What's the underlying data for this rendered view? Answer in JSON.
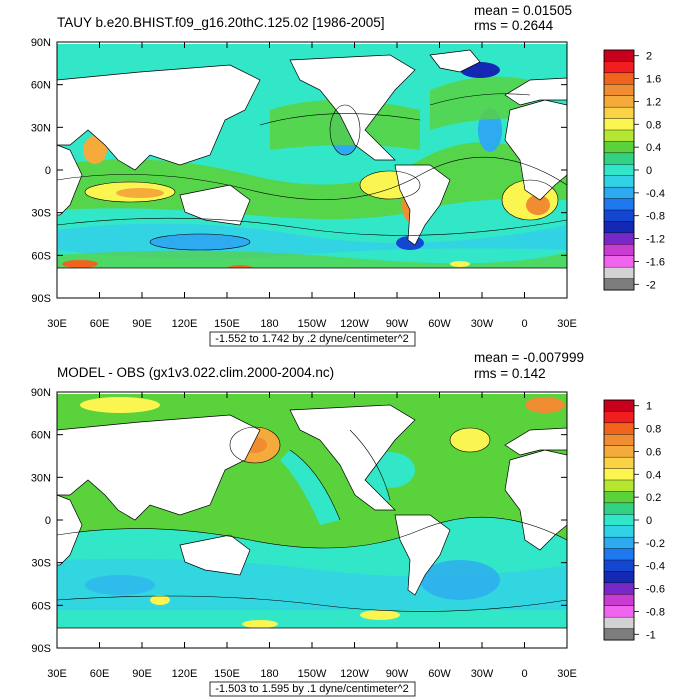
{
  "panels": [
    {
      "title": "TAUY b.e20.BHIST.f09_g16.20thC.125.02 [1986-2005]",
      "mean": "mean = 0.01505",
      "rms": "rms = 0.2644",
      "range_label": "-1.552 to 1.742 by .2 dyne/centimeter^2",
      "lat_labels": [
        "90N",
        "60N",
        "30N",
        "0",
        "30S",
        "60S",
        "90S"
      ],
      "lon_labels": [
        "30E",
        "60E",
        "90E",
        "120E",
        "150E",
        "180",
        "150W",
        "120W",
        "90W",
        "60W",
        "30W",
        "0",
        "30E"
      ],
      "colorbar_labels": [
        "2",
        "1.6",
        "1.2",
        "0.8",
        "0.4",
        "0",
        "-0.4",
        "-0.8",
        "-1.2",
        "-1.6",
        "-2"
      ],
      "colorbar_colors": [
        "#c8001e",
        "#f01e1e",
        "#f0641e",
        "#f08c32",
        "#f5aa3c",
        "#fad246",
        "#faf550",
        "#b4e632",
        "#5ad23c",
        "#32d282",
        "#32e6c8",
        "#32d2e6",
        "#2daaf0",
        "#1e78f0",
        "#1446d2",
        "#1428b4",
        "#7828c8",
        "#c83cd2",
        "#f064f0",
        "#d2d2d2",
        "#7d7d7d"
      ]
    },
    {
      "title": "MODEL - OBS (gx1v3.022.clim.2000-2004.nc)",
      "mean": "mean = -0.007999",
      "rms": "rms = 0.142",
      "range_label": "-1.503 to 1.595 by .1 dyne/centimeter^2",
      "lat_labels": [
        "90N",
        "60N",
        "30N",
        "0",
        "30S",
        "60S",
        "90S"
      ],
      "lon_labels": [
        "30E",
        "60E",
        "90E",
        "120E",
        "150E",
        "180",
        "150W",
        "120W",
        "90W",
        "60W",
        "30W",
        "0",
        "30E"
      ],
      "colorbar_labels": [
        "1",
        "0.8",
        "0.6",
        "0.4",
        "0.2",
        "0",
        "-0.2",
        "-0.4",
        "-0.6",
        "-0.8",
        "-1"
      ],
      "colorbar_colors": [
        "#c8001e",
        "#f01e1e",
        "#f0641e",
        "#f08c32",
        "#f5aa3c",
        "#fad246",
        "#faf550",
        "#b4e632",
        "#5ad23c",
        "#32d282",
        "#32e6c8",
        "#32d2e6",
        "#2daaf0",
        "#1e78f0",
        "#1446d2",
        "#1428b4",
        "#7828c8",
        "#c83cd2",
        "#f064f0",
        "#d2d2d2",
        "#7d7d7d"
      ]
    }
  ]
}
